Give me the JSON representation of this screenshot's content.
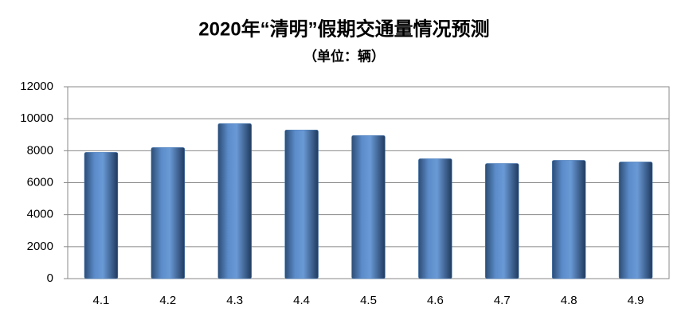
{
  "chart_data": {
    "type": "bar",
    "title": "2020年“清明”假期交通量情况预测",
    "subtitle": "（单位：辆）",
    "categories": [
      "4.1",
      "4.2",
      "4.3",
      "4.4",
      "4.5",
      "4.6",
      "4.7",
      "4.8",
      "4.9"
    ],
    "values": [
      7900,
      8200,
      9700,
      9300,
      8950,
      7500,
      7200,
      7400,
      7300
    ],
    "color": "#4f81bd",
    "ylim": [
      0,
      12000
    ],
    "yticks": [
      0,
      2000,
      4000,
      6000,
      8000,
      10000,
      12000
    ],
    "grid": true
  }
}
